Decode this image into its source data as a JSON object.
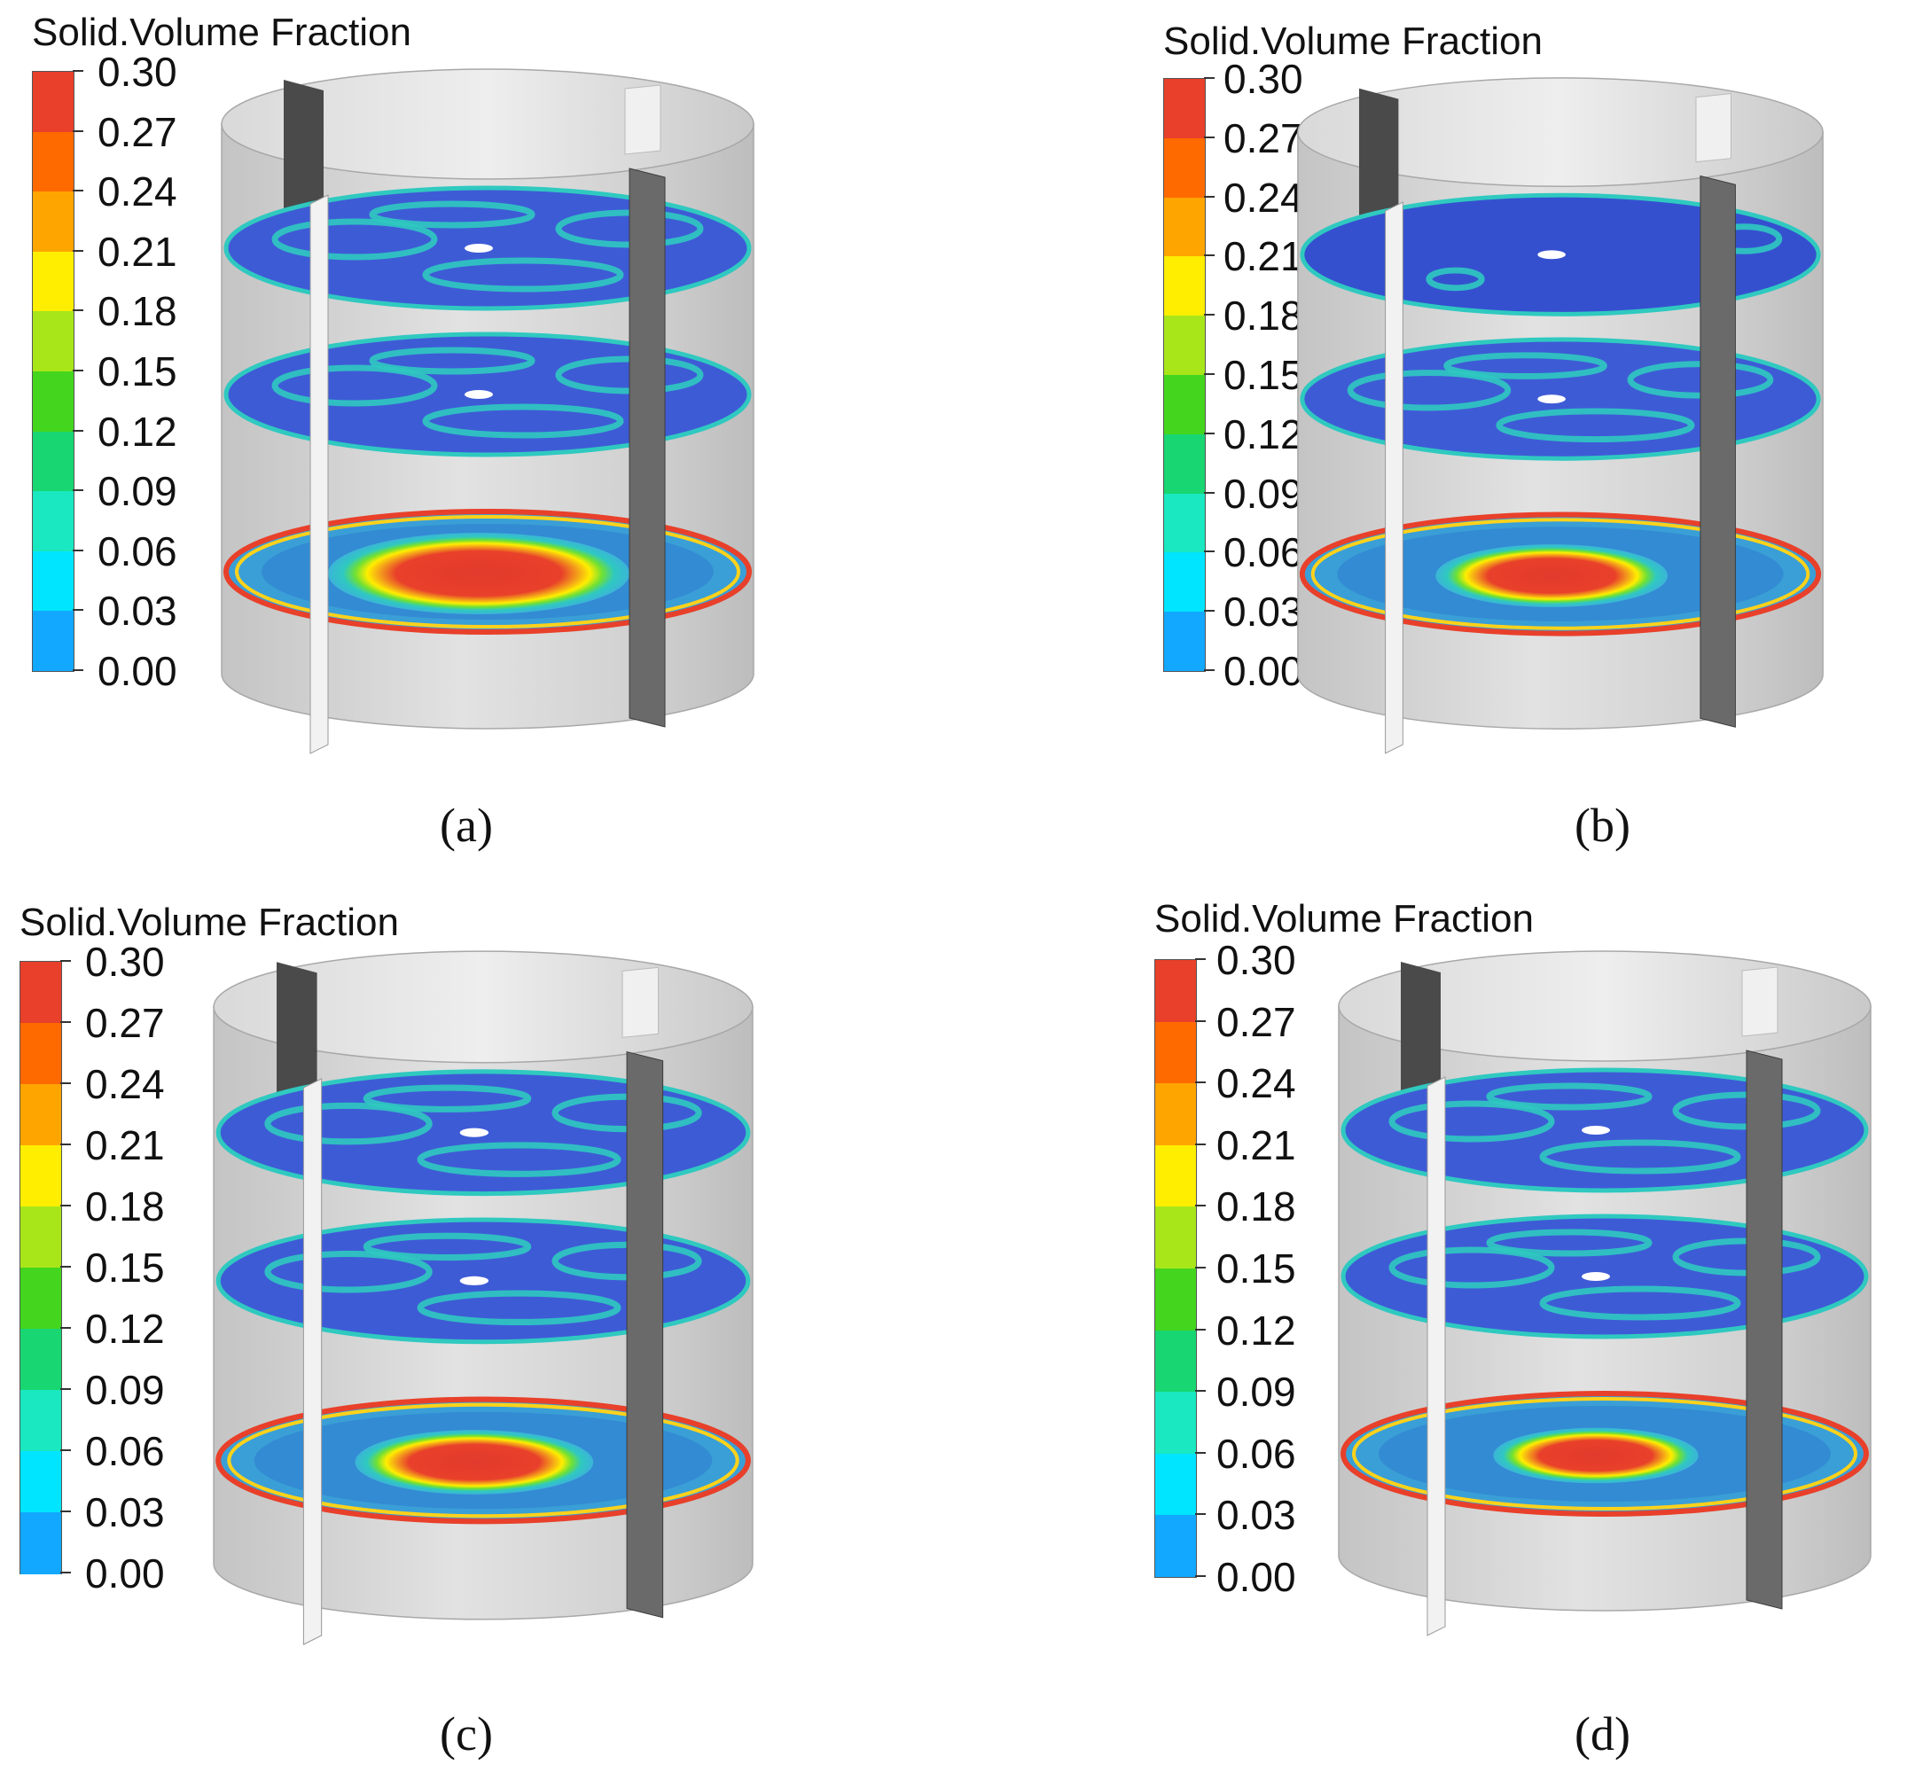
{
  "legend": {
    "title": "Solid.Volume Fraction",
    "ticks": [
      "0.30",
      "0.27",
      "0.24",
      "0.21",
      "0.18",
      "0.15",
      "0.12",
      "0.09",
      "0.06",
      "0.03",
      "0.00"
    ],
    "colors": [
      "#e8402a",
      "#ff6a00",
      "#ffa500",
      "#ffee00",
      "#a8e61a",
      "#44d61e",
      "#18d672",
      "#19e8c0",
      "#00e5ff",
      "#12a8ff",
      "#1e5cff"
    ]
  },
  "panels": [
    {
      "caption": "(a)",
      "bottom_core": "large",
      "top_level": "mixed"
    },
    {
      "caption": "(b)",
      "bottom_core": "medium",
      "top_level": "low"
    },
    {
      "caption": "(c)",
      "bottom_core": "medium",
      "top_level": "mixed"
    },
    {
      "caption": "(d)",
      "bottom_core": "small",
      "top_level": "mixed"
    }
  ],
  "colors": {
    "tank_wall": "#d4d4d4",
    "baffle_dark": "#4a4a4a",
    "baffle_light": "#f0f0f0",
    "low_fraction": "#3e5bd6",
    "mid_fraction": "#2fc9c0",
    "high_fraction": "#e8402a"
  }
}
